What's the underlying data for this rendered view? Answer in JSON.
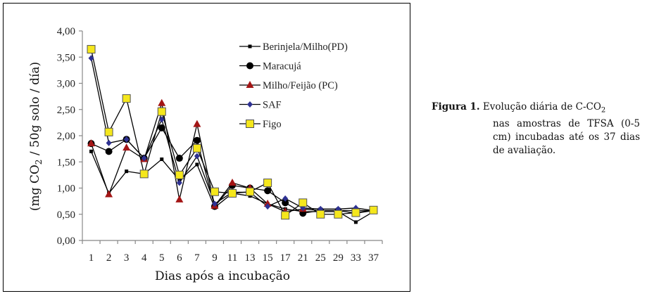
{
  "chart_data": {
    "type": "line",
    "title": "",
    "xlabel": "Dias após a incubação",
    "ylabel": "(mg CO2 / 50g solo / día)",
    "ylim": [
      0,
      4
    ],
    "yticks": [
      "0,00",
      "0,50",
      "1,00",
      "1,50",
      "2,00",
      "2,50",
      "3,00",
      "3,50",
      "4,00"
    ],
    "categories": [
      "1",
      "2",
      "3",
      "4",
      "5",
      "6",
      "7",
      "9",
      "11",
      "13",
      "15",
      "17",
      "21",
      "25",
      "29",
      "33",
      "37"
    ],
    "grid": false,
    "legend_position": "top-right-inside",
    "series": [
      {
        "name": "Berinjela/Milho(PD)",
        "marker": "small-square",
        "color": "#000000",
        "values": [
          1.7,
          0.9,
          1.32,
          1.27,
          1.55,
          1.15,
          1.45,
          0.63,
          0.9,
          0.85,
          0.7,
          0.6,
          0.55,
          0.55,
          0.55,
          0.35,
          0.55
        ]
      },
      {
        "name": "Maracujá",
        "marker": "circle",
        "color": "#000000",
        "values": [
          1.85,
          1.7,
          1.93,
          1.57,
          2.15,
          1.57,
          1.91,
          0.65,
          1.05,
          1.0,
          0.95,
          0.72,
          0.52,
          0.57,
          0.57,
          0.57,
          0.57
        ]
      },
      {
        "name": "Milho/Feijão (PC)",
        "marker": "triangle",
        "color": "#a31515",
        "values": [
          1.85,
          0.88,
          1.77,
          1.55,
          2.62,
          0.78,
          2.22,
          0.66,
          1.1,
          1.0,
          0.7,
          0.55,
          0.6,
          0.57,
          0.57,
          0.52,
          0.57
        ]
      },
      {
        "name": "SAF",
        "marker": "diamond",
        "color": "#2e3192",
        "values": [
          3.48,
          1.86,
          1.93,
          1.57,
          2.31,
          1.1,
          1.61,
          0.7,
          0.92,
          0.92,
          0.65,
          0.8,
          0.62,
          0.6,
          0.6,
          0.62,
          0.57
        ]
      },
      {
        "name": "Figo",
        "marker": "square",
        "color": "#f5e71c",
        "values": [
          3.65,
          2.07,
          2.71,
          1.27,
          2.46,
          1.25,
          1.76,
          0.93,
          0.9,
          0.93,
          1.1,
          0.48,
          0.72,
          0.5,
          0.5,
          0.53,
          0.58
        ]
      }
    ]
  },
  "caption": {
    "label": "Figura 1.",
    "text_main": "Evolução diária de C-CO",
    "text_sub": "2",
    "text_rest": "nas amostras de TFSA (0-5 cm) incubadas até os 37 dias de avaliação."
  }
}
